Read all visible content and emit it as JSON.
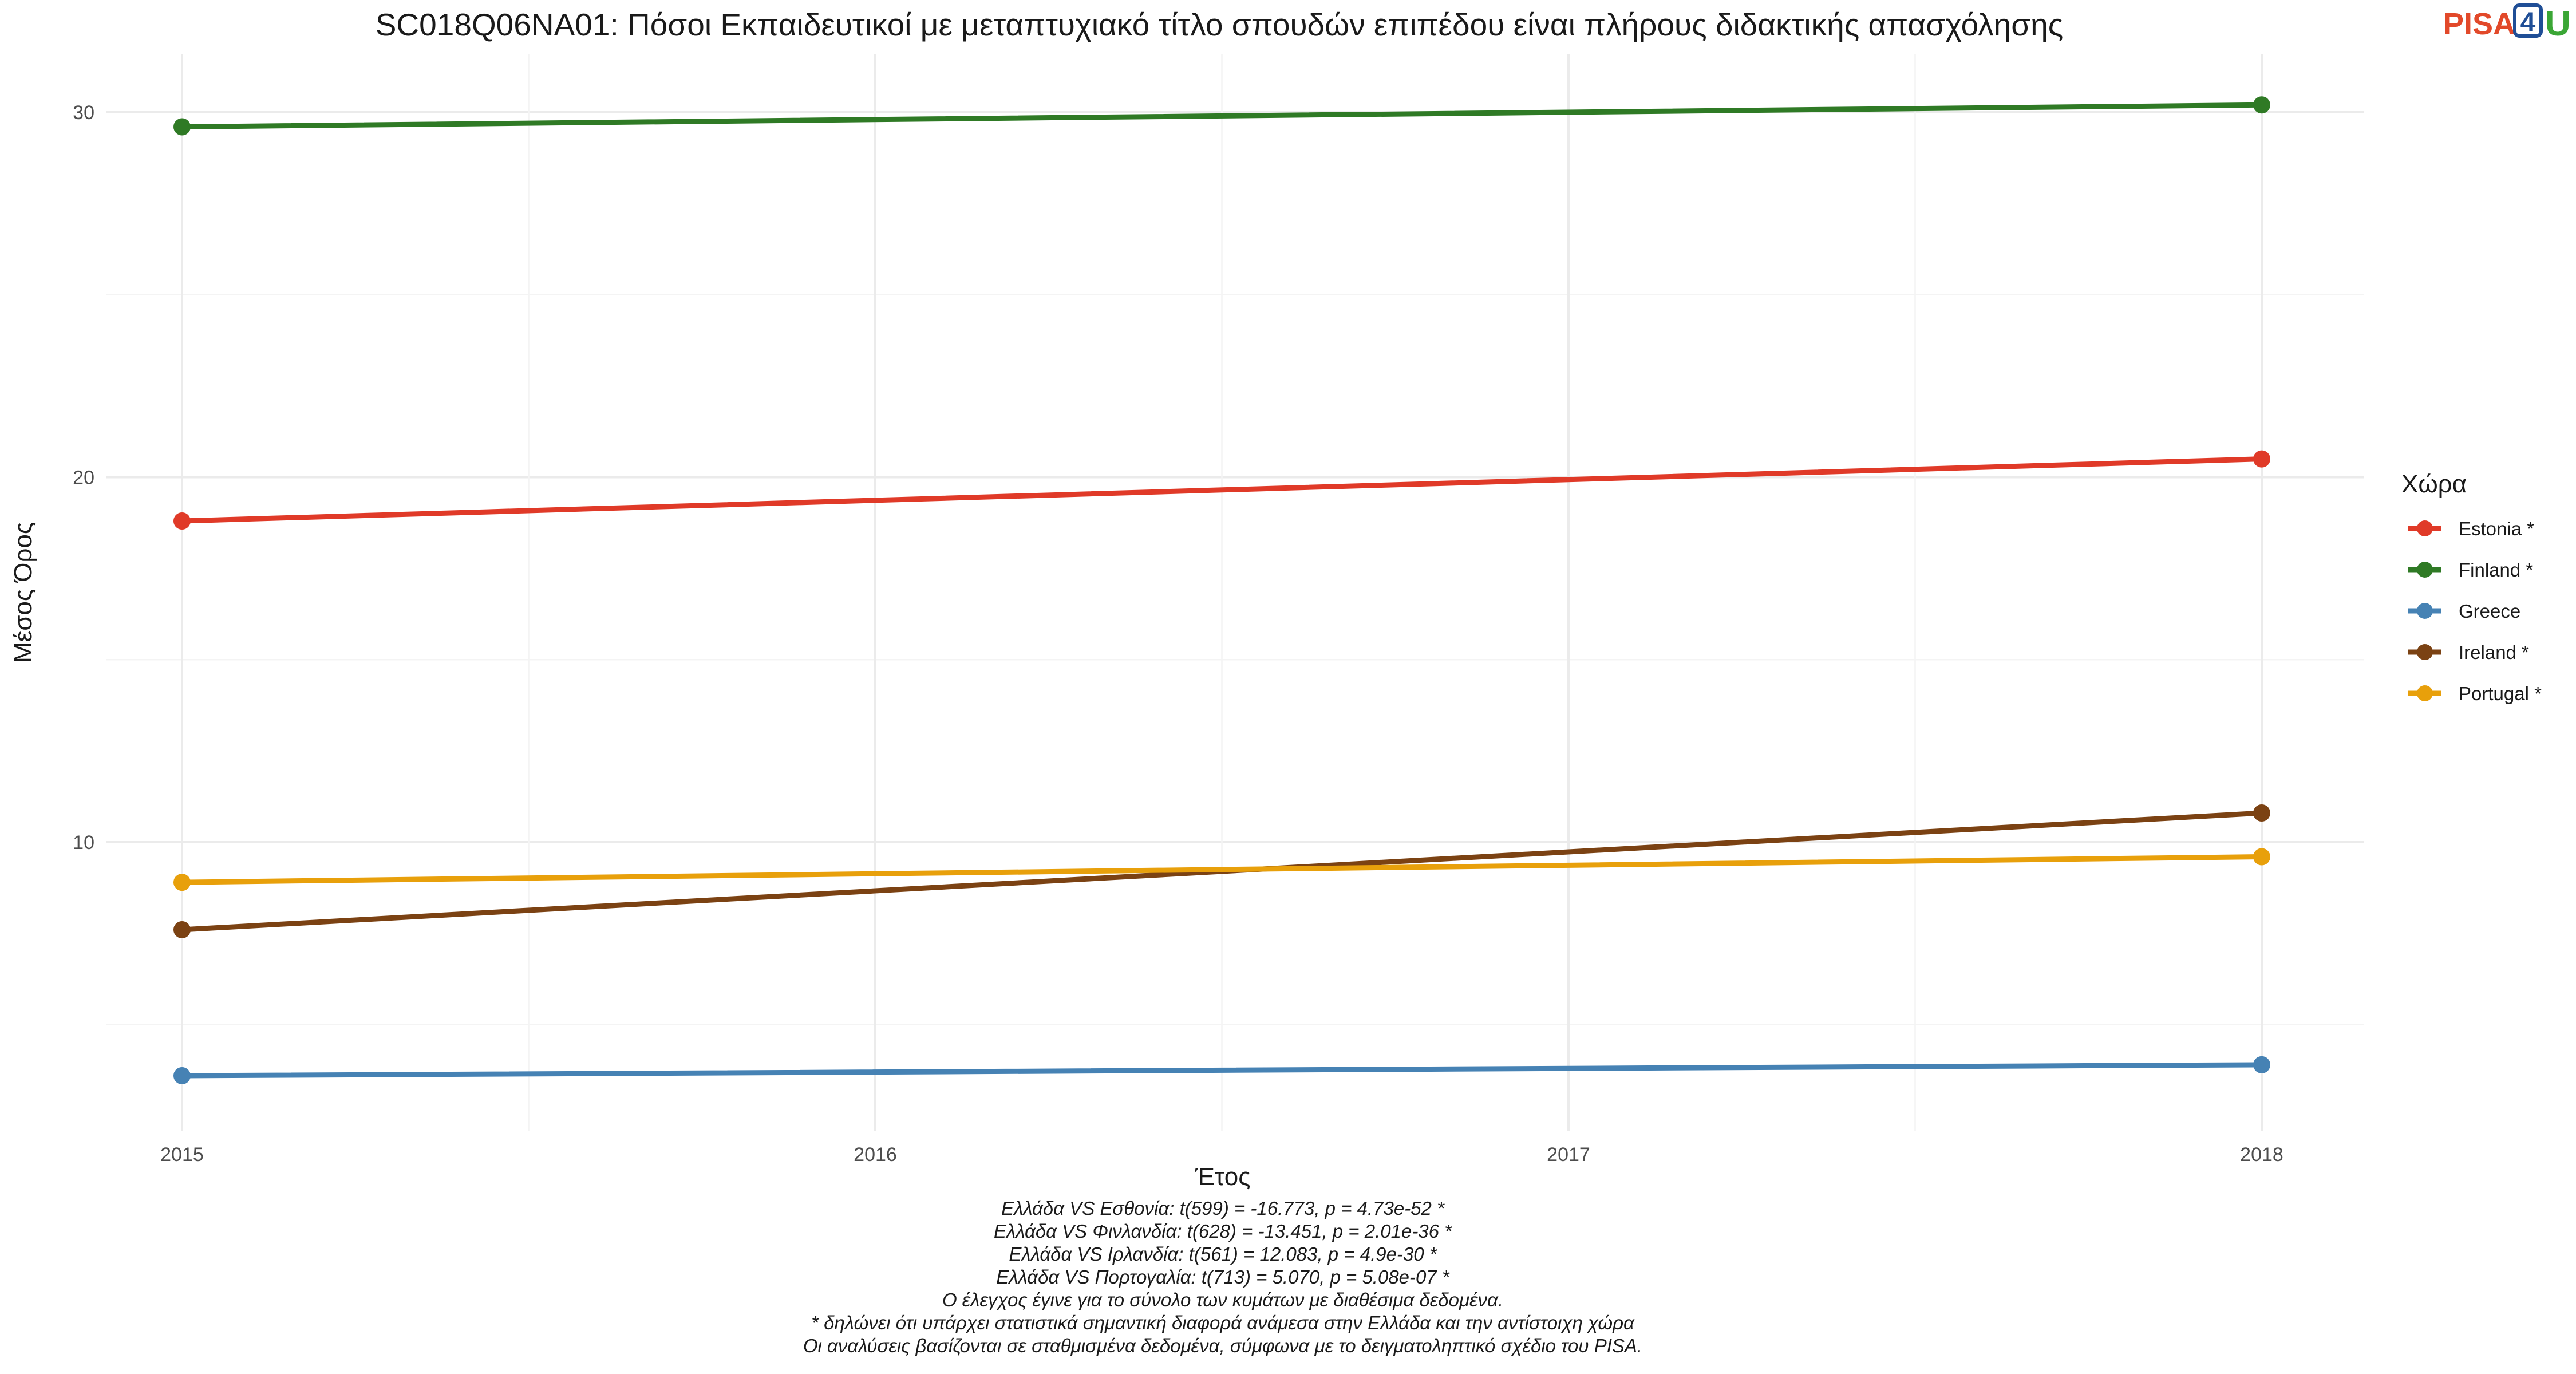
{
  "chart_data": {
    "type": "line",
    "title": "SC018Q06NA01: Πόσοι Εκπαιδευτικοί με μεταπτυχιακό τίτλο σπουδών επιπέδου είναι πλήρους διδακτικής απασχόλησης",
    "xlabel": "Έτος",
    "ylabel": "Μέσος Όρος",
    "x_ticks": [
      "2015",
      "2016",
      "2017",
      "2018"
    ],
    "y_ticks": [
      "10",
      "20",
      "30"
    ],
    "xlim": [
      2015,
      2018
    ],
    "ylim": [
      3,
      31.5
    ],
    "grid": true,
    "legend": {
      "title": "Χώρα",
      "position": "right"
    },
    "series": [
      {
        "name": "Estonia *",
        "color": "#e03a28",
        "x": [
          2015,
          2018
        ],
        "y": [
          18.8,
          20.5
        ]
      },
      {
        "name": "Finland *",
        "color": "#2f7a25",
        "x": [
          2015,
          2018
        ],
        "y": [
          29.6,
          30.2
        ]
      },
      {
        "name": "Greece",
        "color": "#4682b4",
        "x": [
          2015,
          2018
        ],
        "y": [
          3.6,
          3.9
        ]
      },
      {
        "name": "Ireland *",
        "color": "#7b4213",
        "x": [
          2015,
          2018
        ],
        "y": [
          7.6,
          10.8
        ]
      },
      {
        "name": "Portugal *",
        "color": "#e8a00b",
        "x": [
          2015,
          2018
        ],
        "y": [
          8.9,
          9.6
        ]
      }
    ],
    "caption_lines": [
      "Ελλάδα VS Εσθονία: t(599) = -16.773, p = 4.73e-52 *",
      "Ελλάδα VS Φινλανδία: t(628) = -13.451, p = 2.01e-36 *",
      "Ελλάδα VS Ιρλανδία: t(561) = 12.083, p = 4.9e-30 *",
      "Ελλάδα VS Πορτογαλία: t(713) = 5.070, p = 5.08e-07 *",
      "Ο έλεγχος έγινε για το σύνολο των κυμάτων με διαθέσιμα δεδομένα.",
      "* δηλώνει ότι υπάρχει στατιστικά σημαντική διαφορά ανάμεσα στην Ελλάδα και την αντίστοιχη χώρα",
      "Οι αναλύσεις βασίζονται σε σταθμισμένα δεδομένα, σύμφωνα με το δειγματοληπτικό σχέδιο του PISA."
    ]
  },
  "logo": {
    "pisa": "PISA",
    "four": "4",
    "u": "U"
  }
}
